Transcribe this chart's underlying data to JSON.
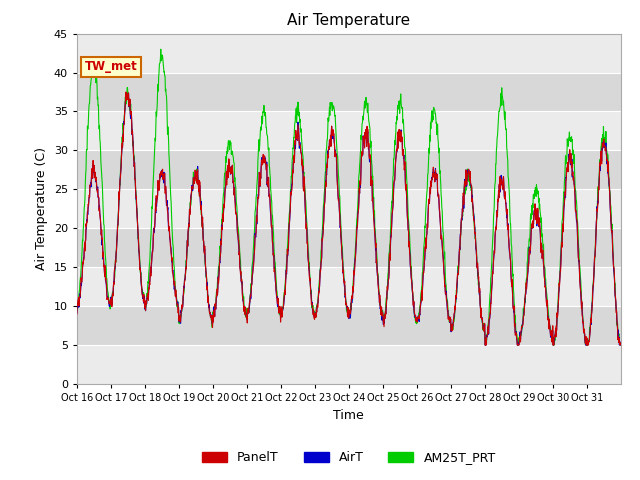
{
  "title": "Air Temperature",
  "ylabel": "Air Temperature (C)",
  "xlabel": "Time",
  "ylim": [
    0,
    45
  ],
  "yticks": [
    0,
    5,
    10,
    15,
    20,
    25,
    30,
    35,
    40,
    45
  ],
  "xtick_labels": [
    "Oct 16",
    "Oct 17",
    "Oct 18",
    "Oct 19",
    "Oct 20",
    "Oct 21",
    "Oct 22",
    "Oct 23",
    "Oct 24",
    "Oct 25",
    "Oct 26",
    "Oct 27",
    "Oct 28",
    "Oct 29",
    "Oct 30",
    "Oct 31"
  ],
  "legend_labels": [
    "PanelT",
    "AirT",
    "AM25T_PRT"
  ],
  "line_colors": {
    "PanelT": "#cc0000",
    "AirT": "#0000cc",
    "AM25T_PRT": "#00cc00"
  },
  "annotation_text": "TW_met",
  "annotation_bg": "#ffffcc",
  "annotation_border": "#cc6600",
  "bg_color": "#ffffff",
  "plot_bg_light": "#ebebeb",
  "plot_bg_dark": "#d8d8d8",
  "title_fontsize": 11,
  "axis_fontsize": 9,
  "tick_fontsize": 8
}
